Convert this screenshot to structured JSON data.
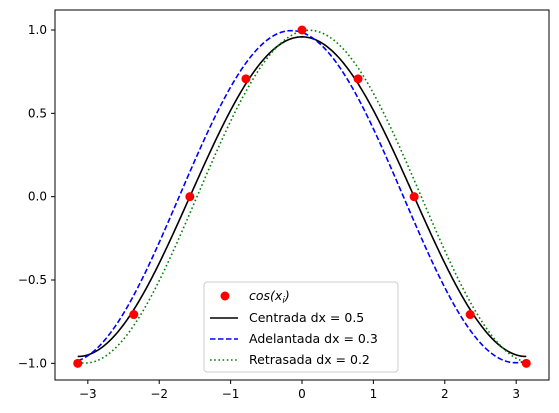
{
  "chart_data": {
    "type": "line",
    "title": "",
    "xlabel": "",
    "ylabel": "",
    "xlim": [
      -3.46,
      3.46
    ],
    "ylim": [
      -1.1,
      1.12
    ],
    "x_ticks": [
      -3,
      -2,
      -1,
      0,
      1,
      2,
      3
    ],
    "x_tick_labels": [
      "−3",
      "−2",
      "−1",
      "0",
      "1",
      "2",
      "3"
    ],
    "y_ticks": [
      -1.0,
      -0.5,
      0.0,
      0.5,
      1.0
    ],
    "y_tick_labels": [
      "−1.0",
      "−0.5",
      "0.0",
      "0.5",
      "1.0"
    ],
    "grid": false,
    "legend_position": "lower center",
    "scatter": {
      "name": "cos(x_i)",
      "name_base": "cos(x",
      "name_sub": "i",
      "name_close": ")",
      "color": "#ff0000",
      "x": [
        -3.1416,
        -2.3562,
        -1.5708,
        -0.7854,
        0.0,
        0.7854,
        1.5708,
        2.3562,
        3.1416
      ],
      "y": [
        -1.0,
        -0.7071,
        0.0,
        0.7071,
        1.0,
        0.7071,
        0.0,
        -0.7071,
        -1.0
      ]
    },
    "series": [
      {
        "name": "Centrada dx = 0.5",
        "color": "#000000",
        "dash": "solid",
        "formula": "centered_difference_of_sin",
        "dx": 0.5,
        "x_range": [
          -3.1416,
          3.1416
        ]
      },
      {
        "name": "Adelantada dx = 0.3",
        "color": "#0000ff",
        "dash": "dashed",
        "formula": "forward_difference_of_sin",
        "dx": 0.3,
        "x_range": [
          -3.1416,
          3.1416
        ]
      },
      {
        "name": "Retrasada dx = 0.2",
        "color": "#008000",
        "dash": "dotted",
        "formula": "backward_difference_of_sin",
        "dx": 0.2,
        "x_range": [
          -3.1416,
          3.1416
        ]
      }
    ]
  }
}
